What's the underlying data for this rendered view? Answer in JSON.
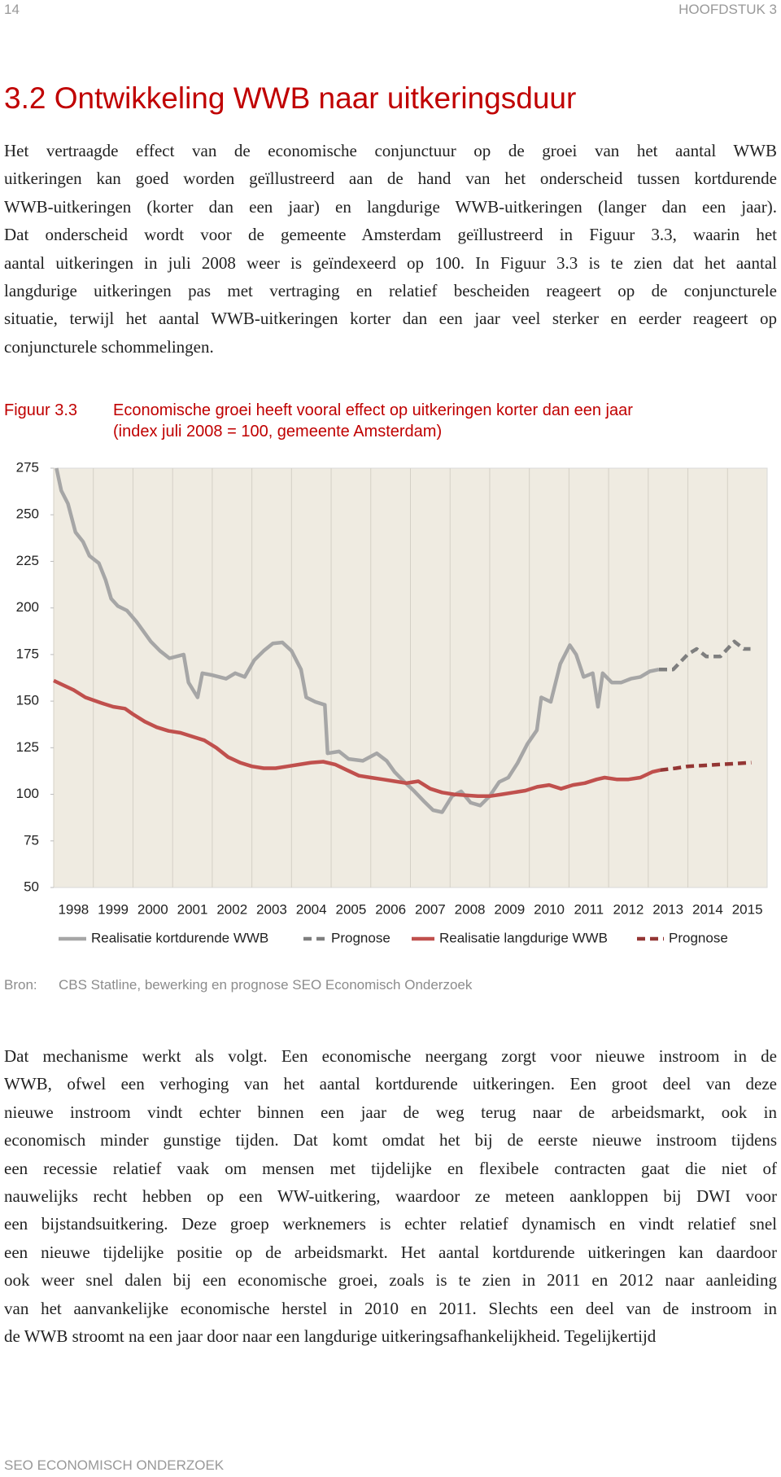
{
  "page_header": {
    "number": "14",
    "chapter": "HOOFDSTUK 3"
  },
  "title": "3.2  Ontwikkeling WWB naar uitkeringsduur",
  "paragraphs": [
    [
      "Het vertraagde effect van de economische conjunctuur op de groei van het aantal WWB",
      "uitkeringen kan goed worden geïllustreerd aan de hand van het onderscheid tussen kortdurende",
      "WWB-uitkeringen (korter dan een jaar) en langdurige WWB-uitkeringen (langer dan een jaar).",
      "Dat onderscheid wordt voor de gemeente Amsterdam geïllustreerd in Figuur 3.3, waarin het",
      "aantal uitkeringen in juli 2008 weer is geïndexeerd op 100. In Figuur 3.3 is te zien dat het aantal",
      "langdurige uitkeringen pas met vertraging en relatief bescheiden reageert op de conjuncturele",
      "situatie, terwijl het aantal WWB-uitkeringen korter dan een jaar veel sterker en eerder reageert op",
      "conjuncturele schommelingen."
    ],
    [
      "Dat mechanisme werkt als volgt. Een economische neergang zorgt voor nieuwe instroom in de",
      "WWB, ofwel een verhoging van het aantal kortdurende uitkeringen. Een groot deel van deze",
      "nieuwe instroom vindt echter binnen een jaar de weg terug naar de arbeidsmarkt, ook in",
      "economisch minder gunstige tijden. Dat komt omdat het bij de eerste nieuwe instroom tijdens",
      "een recessie relatief vaak om mensen met tijdelijke en flexibele contracten gaat die niet of",
      "nauwelijks recht hebben op een WW-uitkering, waardoor ze meteen aankloppen bij DWI voor",
      "een bijstandsuitkering. Deze groep werknemers is echter relatief dynamisch en vindt relatief snel",
      "een nieuwe tijdelijke positie op de arbeidsmarkt. Het aantal kortdurende uitkeringen kan daardoor",
      "ook weer snel dalen bij een economische groei, zoals is te zien in 2011 en 2012 naar aanleiding",
      "van het aanvankelijke economische herstel in 2010 en 2011. Slechts een deel van de instroom in",
      "de WWB stroomt na een jaar door naar een langdurige uitkeringsafhankelijkheid. Tegelijkertijd"
    ]
  ],
  "figure": {
    "label": "Figuur 3.3",
    "caption": [
      "Economische groei heeft vooral effect op uitkeringen korter dan een jaar",
      "(index juli 2008 = 100, gemeente Amsterdam)"
    ],
    "chart_data": {
      "type": "line",
      "xlim": [
        1998,
        2016
      ],
      "ylim": [
        50,
        275
      ],
      "xticks": [
        1998,
        1999,
        2000,
        2001,
        2002,
        2003,
        2004,
        2005,
        2006,
        2007,
        2008,
        2009,
        2010,
        2011,
        2012,
        2013,
        2014,
        2015
      ],
      "yticks": [
        50,
        75,
        100,
        125,
        150,
        175,
        200,
        225,
        250,
        275
      ],
      "grid": "x",
      "background": "#efebe1",
      "series": [
        {
          "name": "Realisatie kortdurende WWB",
          "color": "#a6a6a6",
          "dashed": false,
          "x": [
            1998.07,
            1998.19,
            1998.36,
            1998.55,
            1998.74,
            1998.9,
            1999.14,
            1999.31,
            1999.45,
            1999.62,
            1999.85,
            2000.09,
            2000.45,
            2000.68,
            2000.92,
            2001.28,
            2001.4,
            2001.63,
            2001.75,
            2001.99,
            2002.35,
            2002.58,
            2002.82,
            2003.06,
            2003.3,
            2003.53,
            2003.77,
            2004.0,
            2004.24,
            2004.37,
            2004.6,
            2004.84,
            2004.91,
            2005.2,
            2005.44,
            2005.8,
            2006.15,
            2006.4,
            2006.6,
            2006.85,
            2007.1,
            2007.33,
            2007.57,
            2007.8,
            2008.05,
            2008.28,
            2008.52,
            2008.76,
            2009.0,
            2009.24,
            2009.47,
            2009.7,
            2009.95,
            2010.19,
            2010.3,
            2010.54,
            2010.78,
            2011.02,
            2011.18,
            2011.37,
            2011.6,
            2011.73,
            2011.85,
            2012.08,
            2012.32,
            2012.56,
            2012.8,
            2013.04,
            2013.27
          ],
          "values": [
            275,
            263,
            256,
            240.6,
            235.5,
            228,
            224,
            215,
            205,
            201,
            198.6,
            192.6,
            182,
            177,
            173,
            175,
            160,
            152,
            165,
            164,
            162,
            165,
            163,
            172,
            177,
            181,
            181.5,
            177,
            167,
            152,
            149.6,
            148,
            122,
            123,
            119,
            118,
            122,
            118,
            112,
            106.6,
            101.6,
            96.5,
            91.5,
            90.4,
            99,
            101.6,
            95.5,
            94,
            99,
            106.6,
            109,
            116.7,
            127,
            134.4,
            152,
            149.6,
            170,
            180,
            175,
            163,
            165,
            147,
            165,
            160,
            160,
            162,
            163,
            166,
            167
          ]
        },
        {
          "name": "Prognose",
          "color": "#7f7f7f",
          "dashed": true,
          "x": [
            2013.27,
            2013.63,
            2013.99,
            2014.22,
            2014.46,
            2014.82,
            2015.17,
            2015.41,
            2015.58
          ],
          "values": [
            167,
            167,
            175,
            178,
            174,
            174,
            182,
            178,
            178
          ]
        },
        {
          "name": "Realisatie langdurige WWB",
          "color": "#c0504d",
          "dashed": false,
          "x": [
            1998.0,
            1998.2,
            1998.5,
            1998.8,
            1999.2,
            1999.5,
            1999.8,
            2000.0,
            2000.3,
            2000.6,
            2000.9,
            2001.2,
            2001.5,
            2001.8,
            2002.1,
            2002.4,
            2002.7,
            2003.0,
            2003.3,
            2003.6,
            2003.9,
            2004.2,
            2004.5,
            2004.8,
            2005.1,
            2005.4,
            2005.7,
            2006.0,
            2006.3,
            2006.6,
            2006.9,
            2007.2,
            2007.5,
            2007.8,
            2008.1,
            2008.4,
            2008.7,
            2009.0,
            2009.3,
            2009.6,
            2009.9,
            2010.2,
            2010.5,
            2010.8,
            2011.1,
            2011.4,
            2011.7,
            2011.9,
            2012.2,
            2012.5,
            2012.8,
            2013.1,
            2013.3
          ],
          "values": [
            161,
            159,
            156,
            152,
            149,
            147,
            146,
            143,
            139,
            136,
            134,
            133,
            131,
            129,
            125,
            120,
            117,
            115,
            114,
            114,
            115,
            116,
            117,
            117.5,
            116,
            113,
            110,
            109,
            108,
            107,
            106,
            107,
            103,
            101,
            100,
            99.5,
            99,
            99,
            100,
            101,
            102,
            104,
            105,
            103,
            105,
            106,
            108,
            109,
            108,
            108,
            109,
            112,
            113
          ]
        },
        {
          "name": "Prognose",
          "color": "#943634",
          "dashed": true,
          "x": [
            2013.3,
            2013.7,
            2014.0,
            2014.4,
            2014.8,
            2015.2,
            2015.6
          ],
          "values": [
            113,
            114,
            115,
            115.5,
            116,
            116.5,
            117
          ]
        }
      ]
    }
  },
  "source": {
    "label": "Bron:",
    "text": "CBS Statline, bewerking en prognose SEO Economisch Onderzoek"
  },
  "footer": "SEO ECONOMISCH ONDERZOEK"
}
